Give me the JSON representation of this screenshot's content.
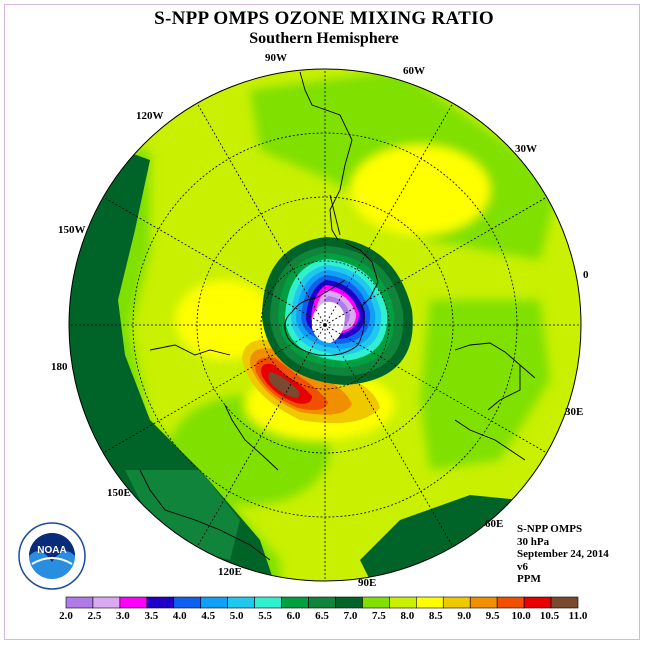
{
  "header": {
    "title": "S-NPP OMPS OZONE MIXING RATIO",
    "subtitle": "Southern Hemisphere"
  },
  "map": {
    "projection": "south-polar-stereographic",
    "longitude_labels": [
      "0",
      "30E",
      "60E",
      "90E",
      "120E",
      "150E",
      "180",
      "150W",
      "120W",
      "90W",
      "60W",
      "30W"
    ]
  },
  "info": {
    "instrument": "S-NPP OMPS",
    "level": "30 hPa",
    "date": "September 24, 2014",
    "version": "v6",
    "units": "PPM"
  },
  "logo": {
    "text": "NOAA"
  },
  "colorbar": {
    "ticks": [
      "2.0",
      "2.5",
      "3.0",
      "3.5",
      "4.0",
      "4.5",
      "5.0",
      "5.5",
      "6.0",
      "6.5",
      "7.0",
      "7.5",
      "8.0",
      "8.5",
      "9.0",
      "9.5",
      "10.0",
      "10.5",
      "11.0"
    ],
    "colors": [
      "#b07ae8",
      "#d9aaf0",
      "#ff00ff",
      "#2000c8",
      "#1060f0",
      "#10a0f8",
      "#20c8f0",
      "#30f0d0",
      "#00a040",
      "#10843a",
      "#006428",
      "#80e000",
      "#c8f000",
      "#ffff00",
      "#f0c800",
      "#f09000",
      "#f05000",
      "#e80000",
      "#7a4a30"
    ]
  }
}
